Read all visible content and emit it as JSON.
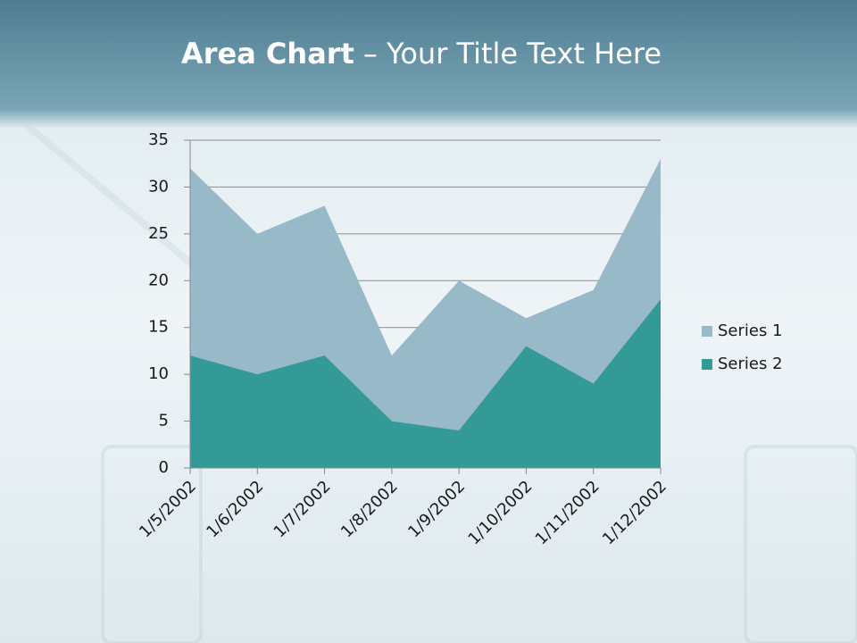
{
  "chart_data": {
    "type": "area",
    "title": [
      "Area Chart",
      "– Your Title Text Here"
    ],
    "categories": [
      "1/5/2002",
      "1/6/2002",
      "1/7/2002",
      "1/8/2002",
      "1/9/2002",
      "1/10/2002",
      "1/11/2002",
      "1/12/2002"
    ],
    "series": [
      {
        "name": "Series 1",
        "color": "#97b9c8",
        "values": [
          32,
          25,
          28,
          12,
          20,
          16,
          19,
          33
        ]
      },
      {
        "name": "Series 2",
        "color": "#339a98",
        "values": [
          12,
          10,
          12,
          5,
          4,
          13,
          9,
          18
        ]
      }
    ],
    "ylim": [
      0,
      35
    ],
    "yticks": [
      0,
      5,
      10,
      15,
      20,
      25,
      30,
      35
    ],
    "grid": true,
    "legend": "right"
  }
}
